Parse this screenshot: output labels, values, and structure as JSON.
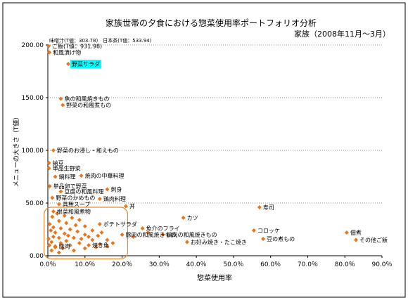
{
  "chart_data": {
    "type": "scatter",
    "title": "家族世帯の夕食における惣菜使用率ポートフォリオ分析",
    "subtitle": "家族（2008年11月～3月）",
    "xlabel": "惣菜使用率",
    "ylabel": "メニューの大きさ（T値）",
    "xlim": [
      0,
      0.9
    ],
    "ylim": [
      0,
      200
    ],
    "x_ticks": [
      0,
      0.1,
      0.2,
      0.3,
      0.4,
      0.5,
      0.6,
      0.7,
      0.8,
      0.9
    ],
    "x_tick_labels": [
      "0.0％",
      "10.0％",
      "20.0％",
      "30.0％",
      "40.0％",
      "50.0％",
      "60.0％",
      "70.0％",
      "80.0％",
      "90.0％"
    ],
    "y_ticks": [
      0,
      50,
      100,
      150,
      200
    ],
    "y_tick_labels": [
      "0.00",
      "50.00",
      "100.00",
      "150.00",
      "200.00"
    ],
    "grid": "horizontal",
    "marker_color": "#e8761e",
    "highlight_color": "#00ffff",
    "cluster_highlight_color": "#e08a2e",
    "top_note": "味噌汁(T値：303.78)　日本茶(T値：533.94)",
    "labeled_points": [
      {
        "label": "ご飯(T値：931.98)",
        "x": 0.002,
        "y": 199
      },
      {
        "label": "和風漬け物",
        "x": 0.004,
        "y": 193
      },
      {
        "label": "野菜サラダ",
        "x": 0.055,
        "y": 182,
        "highlight": true
      },
      {
        "label": "魚の和風焼きもの",
        "x": 0.035,
        "y": 149
      },
      {
        "label": "野菜の和風煮もの",
        "x": 0.04,
        "y": 143
      },
      {
        "label": "野菜のお浸し・和えもの",
        "x": 0.015,
        "y": 100
      },
      {
        "label": "納豆",
        "x": 0.003,
        "y": 88
      },
      {
        "label": "単品生野菜",
        "x": 0.003,
        "y": 83
      },
      {
        "label": "焼肉の中華料理",
        "x": 0.09,
        "y": 76
      },
      {
        "label": "鍋料理",
        "x": 0.02,
        "y": 75
      },
      {
        "label": "単品卵で野菜",
        "x": 0.005,
        "y": 66
      },
      {
        "label": "刺身",
        "x": 0.16,
        "y": 63
      },
      {
        "label": "豆腐の和風料理",
        "x": 0.035,
        "y": 61
      },
      {
        "label": "野菜のかめもの",
        "x": 0.012,
        "y": 55
      },
      {
        "label": "鶏肉料理",
        "x": 0.14,
        "y": 54
      },
      {
        "label": "具無スープ",
        "x": 0.03,
        "y": 49
      },
      {
        "label": "丼",
        "x": 0.21,
        "y": 47
      },
      {
        "label": "寿司",
        "x": 0.57,
        "y": 46
      },
      {
        "label": "根菜和風煮物",
        "x": 0.015,
        "y": 42
      },
      {
        "label": "カツ",
        "x": 0.365,
        "y": 36
      },
      {
        "label": "ポテトサラダ",
        "x": 0.14,
        "y": 30
      },
      {
        "label": "魚介のフライ",
        "x": 0.255,
        "y": 26
      },
      {
        "label": "コロッケ",
        "x": 0.555,
        "y": 24
      },
      {
        "label": "佃煮",
        "x": 0.805,
        "y": 22
      },
      {
        "label": "鶏肉の和風焼きもの",
        "x": 0.31,
        "y": 20
      },
      {
        "label": "豚肉の和風焼きもの",
        "x": 0.2,
        "y": 20
      },
      {
        "label": "豆の煮もの",
        "x": 0.58,
        "y": 16
      },
      {
        "label": "その他ご飯",
        "x": 0.83,
        "y": 15
      },
      {
        "label": "お好み焼き・たこ焼き",
        "x": 0.375,
        "y": 13
      },
      {
        "label": "焼き魚",
        "x": 0.11,
        "y": 10
      },
      {
        "label": "豚肉",
        "x": 0.02,
        "y": 9
      }
    ],
    "unlabeled_points": [
      {
        "x": 0.025,
        "y": 40
      },
      {
        "x": 0.045,
        "y": 38
      },
      {
        "x": 0.065,
        "y": 36
      },
      {
        "x": 0.085,
        "y": 34
      },
      {
        "x": 0.03,
        "y": 33
      },
      {
        "x": 0.05,
        "y": 31
      },
      {
        "x": 0.075,
        "y": 29
      },
      {
        "x": 0.1,
        "y": 28
      },
      {
        "x": 0.015,
        "y": 27
      },
      {
        "x": 0.035,
        "y": 26
      },
      {
        "x": 0.06,
        "y": 25
      },
      {
        "x": 0.12,
        "y": 24
      },
      {
        "x": 0.08,
        "y": 23
      },
      {
        "x": 0.02,
        "y": 22
      },
      {
        "x": 0.045,
        "y": 21
      },
      {
        "x": 0.1,
        "y": 20
      },
      {
        "x": 0.135,
        "y": 19
      },
      {
        "x": 0.015,
        "y": 18
      },
      {
        "x": 0.03,
        "y": 17
      },
      {
        "x": 0.07,
        "y": 17
      },
      {
        "x": 0.09,
        "y": 16
      },
      {
        "x": 0.12,
        "y": 15
      },
      {
        "x": 0.16,
        "y": 15
      },
      {
        "x": 0.05,
        "y": 14
      },
      {
        "x": 0.01,
        "y": 13
      },
      {
        "x": 0.035,
        "y": 12
      },
      {
        "x": 0.085,
        "y": 12
      },
      {
        "x": 0.14,
        "y": 11
      },
      {
        "x": 0.175,
        "y": 12
      },
      {
        "x": 0.06,
        "y": 10
      },
      {
        "x": 0.02,
        "y": 8
      },
      {
        "x": 0.04,
        "y": 7
      },
      {
        "x": 0.1,
        "y": 7
      },
      {
        "x": 0.13,
        "y": 8
      },
      {
        "x": 0.16,
        "y": 9
      },
      {
        "x": 0.01,
        "y": 5
      },
      {
        "x": 0.07,
        "y": 5
      },
      {
        "x": 0.03,
        "y": 3
      },
      {
        "x": 0.055,
        "y": 19
      },
      {
        "x": 0.11,
        "y": 18
      },
      {
        "x": 0.145,
        "y": 22
      },
      {
        "x": 0.005,
        "y": 30
      },
      {
        "x": 0.008,
        "y": 24
      },
      {
        "x": 0.002,
        "y": 16
      },
      {
        "x": 0.004,
        "y": 10
      },
      {
        "x": 0.012,
        "y": 37
      },
      {
        "x": 0.23,
        "y": 18
      },
      {
        "x": 0.27,
        "y": 22
      }
    ]
  }
}
